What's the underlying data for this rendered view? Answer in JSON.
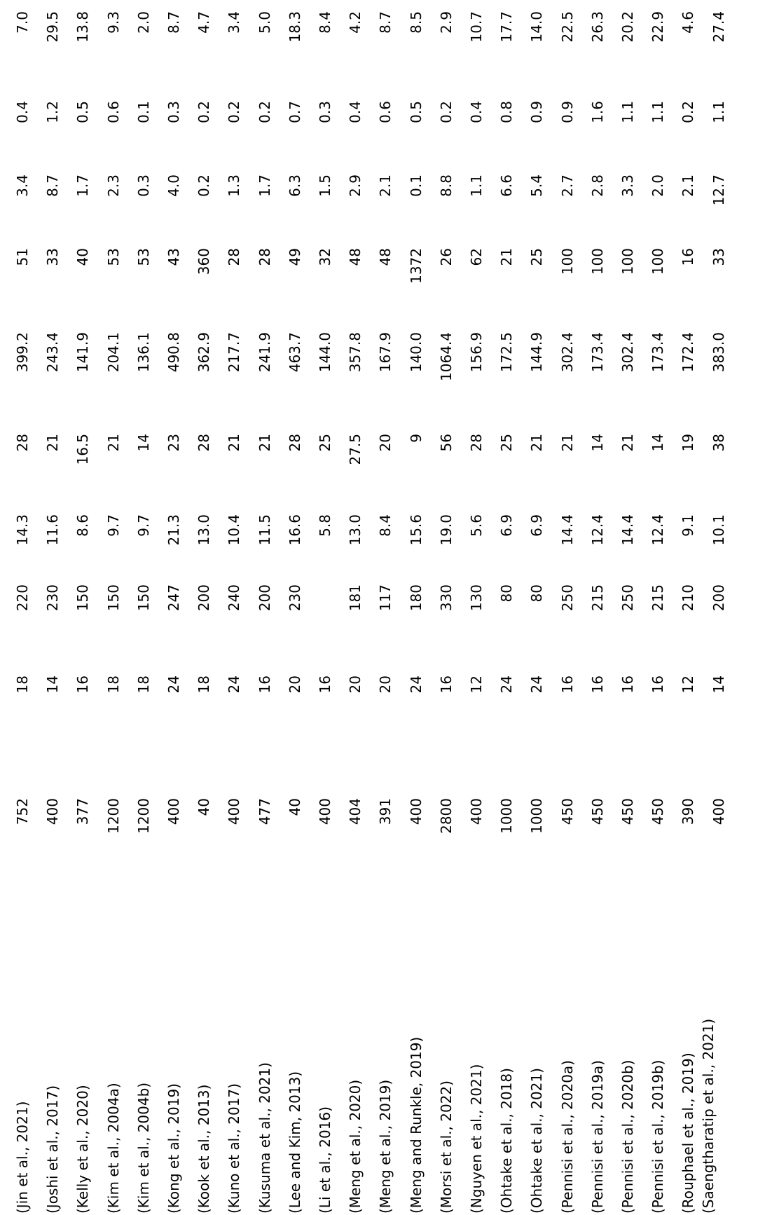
{
  "rows": [
    {
      "ref": "(Jin et al., 2021)",
      "v": [
        "752",
        "18",
        "220",
        "14.3",
        "28",
        "399.2",
        "51",
        "3.4",
        "0.4",
        "7.0"
      ]
    },
    {
      "ref": "(Joshi et al., 2017)",
      "v": [
        "400",
        "14",
        "230",
        "11.6",
        "21",
        "243.4",
        "33",
        "8.7",
        "1.2",
        "29.5"
      ]
    },
    {
      "ref": "(Kelly et al., 2020)",
      "v": [
        "377",
        "16",
        "150",
        "8.6",
        "16.5",
        "141.9",
        "40",
        "1.7",
        "0.5",
        "13.8"
      ]
    },
    {
      "ref": "(Kim et al., 2004a)",
      "v": [
        "1200",
        "18",
        "150",
        "9.7",
        "21",
        "204.1",
        "53",
        "2.3",
        "0.6",
        "9.3"
      ]
    },
    {
      "ref": "(Kim et al., 2004b)",
      "v": [
        "1200",
        "18",
        "150",
        "9.7",
        "14",
        "136.1",
        "53",
        "0.3",
        "0.1",
        "2.0"
      ]
    },
    {
      "ref": "(Kong et al., 2019)",
      "v": [
        "400",
        "24",
        "247",
        "21.3",
        "23",
        "490.8",
        "43",
        "4.0",
        "0.3",
        "8.7"
      ]
    },
    {
      "ref": "(Kook et al., 2013)",
      "v": [
        "40",
        "18",
        "200",
        "13.0",
        "28",
        "362.9",
        "360",
        "0.2",
        "0.2",
        "4.7"
      ]
    },
    {
      "ref": "(Kuno et al., 2017)",
      "v": [
        "400",
        "24",
        "240",
        "10.4",
        "21",
        "217.7",
        "28",
        "1.3",
        "0.2",
        "3.4"
      ]
    },
    {
      "ref": "(Kusuma et al., 2021)",
      "v": [
        "477",
        "16",
        "200",
        "11.5",
        "21",
        "241.9",
        "28",
        "1.7",
        "0.2",
        "5.0"
      ]
    },
    {
      "ref": "(Lee and Kim, 2013)",
      "v": [
        "40",
        "20",
        "230",
        "16.6",
        "28",
        "463.7",
        "49",
        "6.3",
        "0.7",
        "18.3"
      ]
    },
    {
      "ref": "(Li et al., 2016)",
      "v": [
        "400",
        "16",
        "",
        "5.8",
        "25",
        "144.0",
        "32",
        "1.5",
        "0.3",
        "8.4"
      ]
    },
    {
      "ref": "(Meng et al., 2020)",
      "v": [
        "404",
        "20",
        "181",
        "13.0",
        "27.5",
        "357.8",
        "48",
        "2.9",
        "0.4",
        "4.2"
      ]
    },
    {
      "ref": "(Meng et al., 2019)",
      "v": [
        "391",
        "20",
        "117",
        "8.4",
        "20",
        "167.9",
        "48",
        "2.1",
        "0.6",
        "8.7"
      ]
    },
    {
      "ref": "(Meng and Runkle, 2019)",
      "v": [
        "400",
        "24",
        "180",
        "15.6",
        "9",
        "140.0",
        "1372",
        "0.1",
        "0.5",
        "8.5"
      ]
    },
    {
      "ref": "(Morsi et al., 2022)",
      "v": [
        "2800",
        "16",
        "330",
        "19.0",
        "56",
        "1064.4",
        "26",
        "8.8",
        "0.2",
        "2.9"
      ]
    },
    {
      "ref": "(Nguyen et al., 2021)",
      "v": [
        "400",
        "12",
        "130",
        "5.6",
        "28",
        "156.9",
        "62",
        "1.1",
        "0.4",
        "10.7"
      ]
    },
    {
      "ref": "(Ohtake et al., 2018)",
      "v": [
        "1000",
        "24",
        "80",
        "6.9",
        "25",
        "172.5",
        "21",
        "6.6",
        "0.8",
        "17.7"
      ]
    },
    {
      "ref": "(Ohtake et al., 2021)",
      "v": [
        "1000",
        "24",
        "80",
        "6.9",
        "21",
        "144.9",
        "25",
        "5.4",
        "0.9",
        "14.0"
      ]
    },
    {
      "ref": "(Pennisi et al., 2020a)",
      "v": [
        "450",
        "16",
        "250",
        "14.4",
        "21",
        "302.4",
        "100",
        "2.7",
        "0.9",
        "22.5"
      ]
    },
    {
      "ref": "(Pennisi et al., 2019a)",
      "v": [
        "450",
        "16",
        "215",
        "12.4",
        "14",
        "173.4",
        "100",
        "2.8",
        "1.6",
        "26.3"
      ]
    },
    {
      "ref": "(Pennisi et al., 2020b)",
      "v": [
        "450",
        "16",
        "250",
        "14.4",
        "21",
        "302.4",
        "100",
        "3.3",
        "1.1",
        "20.2"
      ]
    },
    {
      "ref": "(Pennisi et al., 2019b)",
      "v": [
        "450",
        "16",
        "215",
        "12.4",
        "14",
        "173.4",
        "100",
        "2.0",
        "1.1",
        "22.9"
      ]
    },
    {
      "ref": "(Rouphael et al., 2019)",
      "v": [
        "390",
        "12",
        "210",
        "9.1",
        "19",
        "172.4",
        "16",
        "2.1",
        "0.2",
        "4.6"
      ]
    },
    {
      "ref": "(Saengtharatip et al., 2021)",
      "v": [
        "400",
        "14",
        "200",
        "10.1",
        "38",
        "383.0",
        "33",
        "12.7",
        "1.1",
        "27.4"
      ]
    }
  ]
}
